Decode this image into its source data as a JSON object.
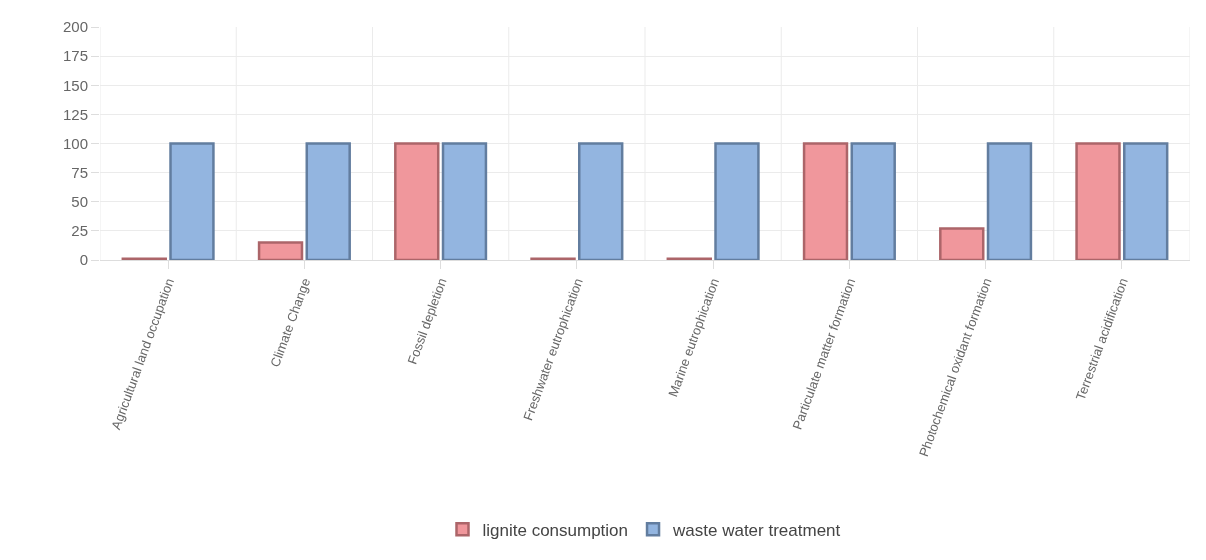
{
  "chart_data": {
    "type": "bar",
    "categories": [
      "Agricultural land occupation",
      "Climate Change",
      "Fossil depletion",
      "Freshwater eutrophication",
      "Marine eutrophication",
      "Particulate matter formation",
      "Photochemical oxidant formation",
      "Terrestrial acidification"
    ],
    "series": [
      {
        "name": "lignite consumption",
        "color": "#f0979c",
        "values": [
          1,
          15,
          100,
          1,
          1,
          100,
          27,
          100
        ]
      },
      {
        "name": "waste water treatment",
        "color": "#93b5e0",
        "values": [
          100,
          100,
          100,
          100,
          100,
          100,
          100,
          100
        ]
      }
    ],
    "ylim": [
      0,
      200
    ],
    "yticks": [
      0,
      25,
      50,
      75,
      100,
      125,
      150,
      175,
      200
    ],
    "grid": true,
    "legend": "bottom"
  }
}
